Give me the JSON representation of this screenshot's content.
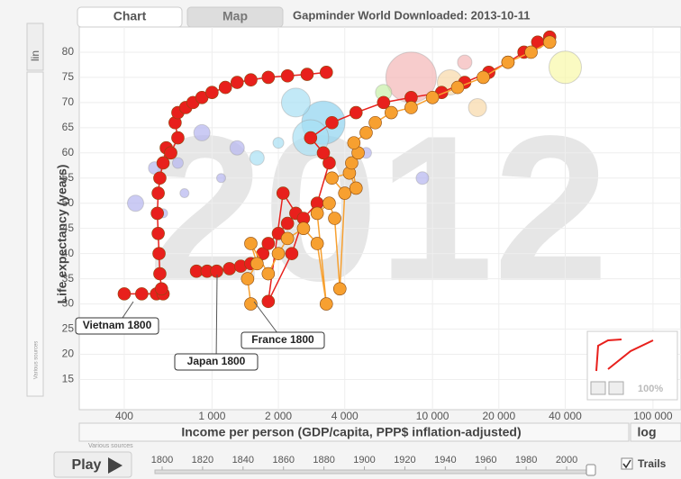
{
  "ui": {
    "tabs": [
      "Chart",
      "Map"
    ],
    "header": "Gapminder World Downloaded: 2013-10-11",
    "scale_button": "lin",
    "scale_dropdown": "log",
    "source_y": "Various sources",
    "source_x": "Various sources",
    "play": "Play",
    "trails": "Trails",
    "zoom": "100%"
  },
  "timeline": {
    "ticks": [
      1800,
      1820,
      1840,
      1860,
      1880,
      1900,
      1920,
      1940,
      1960,
      1980,
      2000
    ],
    "range": [
      1800,
      2012
    ],
    "value": 2012
  },
  "chart_data": {
    "type": "scatter",
    "year_label": "2012",
    "xlabel": "Income per person (GDP/capita, PPP$ inflation-adjusted)",
    "ylabel": "Life expectancy (years)",
    "xscale": "log",
    "grid": true,
    "xlim": [
      250,
      134000
    ],
    "ylim": [
      9,
      85
    ],
    "xticks": [
      400,
      {
        "value": 1000,
        "label": "1 000"
      },
      {
        "value": 2000,
        "label": "2 000"
      },
      {
        "value": 4000,
        "label": "4 000"
      },
      {
        "value": 10000,
        "label": "10 000"
      },
      {
        "value": 20000,
        "label": "20 000"
      },
      {
        "value": 40000,
        "label": "40 000"
      },
      {
        "value": 100000,
        "label": "100 000"
      }
    ],
    "yticks": [
      15,
      20,
      25,
      30,
      35,
      40,
      45,
      50,
      55,
      60,
      65,
      70,
      75,
      80
    ],
    "series": [
      {
        "name": "Vietnam 1800",
        "color": "#e8201c",
        "x": [
          400,
          480,
          560,
          600,
          590,
          580,
          575,
          570,
          565,
          570,
          580,
          600,
          620,
          650,
          700,
          680,
          700,
          760,
          820,
          900,
          1000,
          1150,
          1300,
          1500,
          1800,
          2200,
          2700,
          3300
        ],
        "values": [
          32,
          32,
          32,
          32,
          33,
          36,
          40,
          44,
          48,
          52,
          55,
          58,
          61,
          60,
          63,
          66,
          68,
          69,
          70,
          71,
          72,
          73,
          74,
          74.5,
          75,
          75.3,
          75.6,
          76
        ]
      },
      {
        "name": "Japan 1800",
        "color": "#e8201c",
        "x": [
          850,
          950,
          1050,
          1200,
          1350,
          1500,
          1700,
          1800,
          2000,
          2200,
          2400,
          2100,
          1800,
          2300,
          2600,
          3000,
          3400,
          3200,
          2800,
          3500,
          4500,
          6000,
          8000,
          11000,
          14000,
          18000,
          22000,
          26000,
          30000,
          34000
        ],
        "values": [
          36.5,
          36.5,
          36.5,
          37,
          37.5,
          38,
          40,
          42,
          44,
          46,
          48,
          52,
          30.5,
          40,
          47,
          50,
          58,
          60,
          63,
          66,
          68,
          70,
          71,
          72,
          74,
          76,
          78,
          80,
          82,
          83
        ]
      },
      {
        "name": "France 1800",
        "color": "#f7a030",
        "x": [
          1500,
          1450,
          1600,
          1500,
          1800,
          2000,
          2200,
          2600,
          3000,
          3300,
          3000,
          3400,
          3600,
          3800,
          4000,
          3500,
          4200,
          4500,
          4300,
          4600,
          4400,
          5000,
          5500,
          6500,
          8000,
          10000,
          13000,
          17000,
          22000,
          28000,
          34000
        ],
        "values": [
          30,
          35,
          38,
          42,
          36,
          40,
          43,
          45,
          42,
          30,
          48,
          50,
          47,
          33,
          52,
          55,
          56,
          53,
          58,
          60,
          62,
          64,
          66,
          68,
          69,
          71,
          73,
          75,
          78,
          80,
          82
        ]
      }
    ],
    "bubbles": {
      "x": [
        8000,
        3200,
        2400,
        1300,
        900,
        700,
        550,
        1600,
        600,
        450,
        2800,
        6000,
        12000,
        16000,
        40000,
        5000,
        1100,
        2000,
        750,
        9000,
        14000
      ],
      "values": [
        75,
        66,
        70,
        61,
        64,
        58,
        57,
        59,
        48,
        50,
        63,
        72,
        74,
        69,
        77,
        60,
        55,
        62,
        52,
        55,
        78
      ],
      "sizes": [
        28,
        24,
        16,
        8,
        9,
        6,
        7,
        8,
        5,
        9,
        20,
        9,
        14,
        10,
        18,
        6,
        5,
        6,
        5,
        7,
        8
      ],
      "colors": [
        "#f4b6b6",
        "#8fd3f0",
        "#a8e0f4",
        "#b5b5f0",
        "#b5b5f0",
        "#b5b5f0",
        "#b5b5f0",
        "#a8e0f4",
        "#b5b5f0",
        "#b5b5f0",
        "#a8e0f4",
        "#c8f0a8",
        "#f8d8a8",
        "#f8d8a8",
        "#f8f8a8",
        "#b5b5f0",
        "#b5b5f0",
        "#a8e0f4",
        "#b5b5f0",
        "#b5b5f0",
        "#f4b6b6"
      ]
    }
  }
}
